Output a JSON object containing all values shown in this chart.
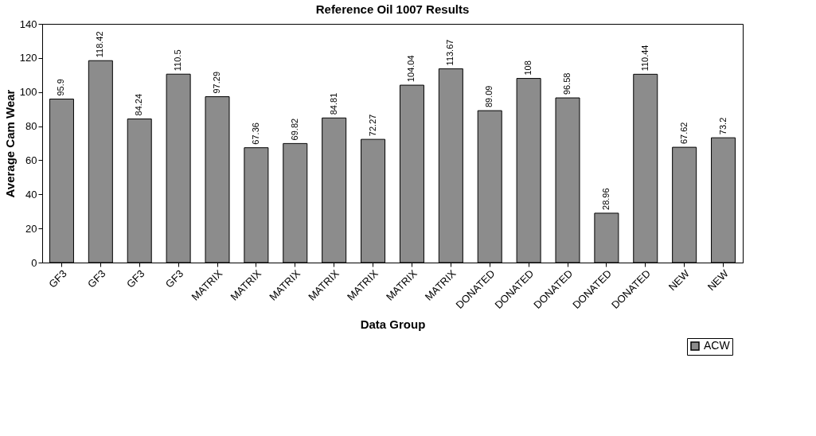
{
  "chart_data": {
    "type": "bar",
    "title": "Reference Oil 1007 Results",
    "xlabel": "Data Group",
    "ylabel": "Average Cam Wear",
    "categories": [
      "GF3",
      "GF3",
      "GF3",
      "GF3",
      "MATRIX",
      "MATRIX",
      "MATRIX",
      "MATRIX",
      "MATRIX",
      "MATRIX",
      "MATRIX",
      "DONATED",
      "DONATED",
      "DONATED",
      "DONATED",
      "DONATED",
      "NEW",
      "NEW"
    ],
    "series": [
      {
        "name": "ACW",
        "color": "#8c8c8c",
        "values": [
          95.9,
          118.42,
          84.24,
          110.5,
          97.29,
          67.36,
          69.82,
          84.81,
          72.27,
          104.04,
          113.67,
          89.09,
          108,
          96.58,
          28.96,
          110.44,
          67.62,
          73.2
        ]
      }
    ],
    "ylim": [
      0,
      140
    ],
    "yticks": [
      0,
      20,
      40,
      60,
      80,
      100,
      120,
      140
    ],
    "data_labels": true,
    "legend": "bottom right",
    "grid": false
  }
}
